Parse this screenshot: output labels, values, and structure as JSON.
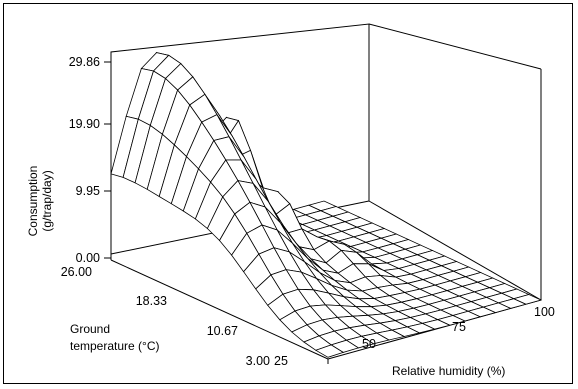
{
  "chart_data": {
    "type": "surface",
    "zlabel_line1": "Consumption",
    "zlabel_line2": "(g/trap/day)",
    "ylabel_line1": "Ground",
    "ylabel_line2": "temperature (°C)",
    "xlabel": "Relative humidity (%)",
    "z_ticks": [
      "0.00",
      "9.95",
      "19.90",
      "29.86"
    ],
    "temperature_ticks": [
      "3.00",
      "10.67",
      "18.33",
      "26.00"
    ],
    "humidity_ticks": [
      "25",
      "50",
      "75",
      "100"
    ],
    "z_range": [
      0,
      32
    ],
    "temperature_range": [
      3,
      26
    ],
    "humidity_range": [
      25,
      100
    ],
    "surface_note": "Consumption peaks (~30) at high ground temperature and low relative humidity, with secondary spikes (~15-20) near 50-60% humidity; near zero at high humidity."
  }
}
